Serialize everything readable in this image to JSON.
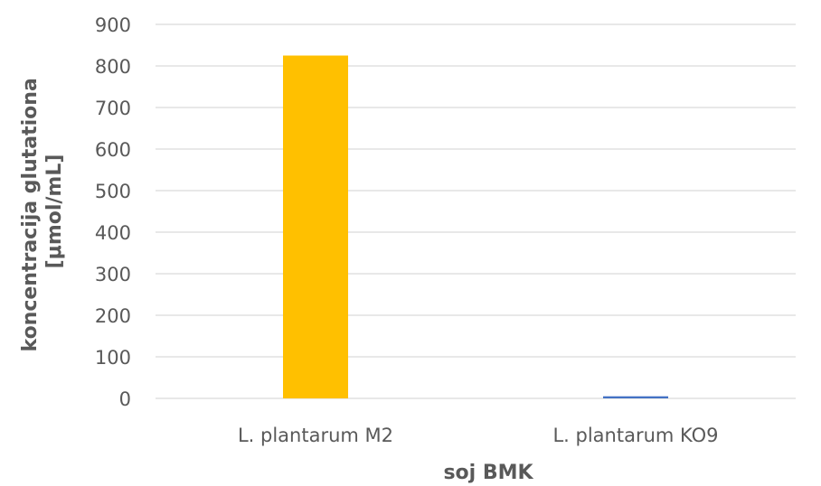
{
  "chart_data": {
    "type": "bar",
    "categories": [
      "L. plantarum M2",
      "L. plantarum KO9"
    ],
    "values": [
      825,
      5
    ],
    "bar_colors": [
      "#FFC000",
      "#4472C4"
    ],
    "xlabel": "soj BMK",
    "ylabel_lines": [
      "koncentracija glutationa",
      "[μmol/mL]"
    ],
    "ylim": [
      0,
      900
    ],
    "yticks": [
      0,
      100,
      200,
      300,
      400,
      500,
      600,
      700,
      800,
      900
    ],
    "grid": true,
    "legend": "none"
  }
}
